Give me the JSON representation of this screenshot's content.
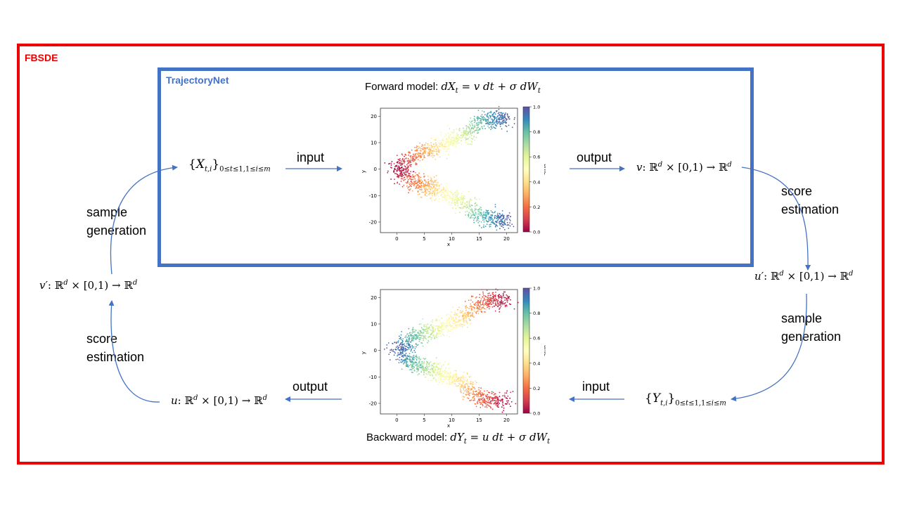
{
  "frames": {
    "outer_label": "FBSDE",
    "inner_label": "TrajectoryNet",
    "outer_color": "#ee0000",
    "inner_color": "#4472c4"
  },
  "forward": {
    "caption_prefix": "Forward model: ",
    "caption_eq": "dX_t = v dt + σ dW_t",
    "input_label": "input",
    "output_label": "output",
    "input_set": "{X_{t,i}}_{0≤t≤1,1≤i≤m}",
    "output_map": "v: ℝ^d × [0,1) → ℝ^d"
  },
  "backward": {
    "caption_prefix": "Backward model: ",
    "caption_eq": "dY_t = u dt + σ dW_t",
    "input_label": "input",
    "output_label": "output",
    "input_set": "{Y_{t,i}}_{0≤t≤1,1≤i≤m}",
    "output_map": "u: ℝ^d × [0,1) → ℝ^d"
  },
  "cycle": {
    "score_estimation_right": "score\nestimation",
    "sample_generation_right": "sample\ngeneration",
    "u_prime_map": "u′: ℝ^d × [0,1) → ℝ^d",
    "score_estimation_left": "score\nestimation",
    "sample_generation_left": "sample\ngeneration",
    "v_prime_map": "v′: ℝ^d × [0,1) → ℝ^d"
  },
  "plot_axes": {
    "xlabel": "x",
    "ylabel": "y",
    "colorbar_label": "time",
    "xticks": [
      0,
      5,
      10,
      15,
      20
    ],
    "yticks": [
      20,
      10,
      0,
      -10,
      -20
    ],
    "cticks": [
      "0.0",
      "0.2",
      "0.4",
      "0.6",
      "0.8",
      "1.0"
    ]
  },
  "chart_data": [
    {
      "type": "scatter",
      "name": "forward",
      "xlim": [
        -3,
        22
      ],
      "ylim": [
        -24,
        23
      ],
      "colormap": "Spectral",
      "time_range": [
        0,
        1
      ],
      "branches": [
        {
          "x": [
            0,
            3,
            6,
            9,
            12,
            15,
            18,
            20
          ],
          "y": [
            0,
            5,
            7,
            10,
            12,
            18,
            19,
            19
          ],
          "time": [
            0.0,
            0.2,
            0.35,
            0.5,
            0.6,
            0.8,
            0.9,
            1.0
          ]
        },
        {
          "x": [
            0,
            3,
            6,
            9,
            12,
            15,
            18,
            20
          ],
          "y": [
            0,
            -5,
            -7,
            -10,
            -12,
            -18,
            -19,
            -19
          ],
          "time": [
            0.0,
            0.2,
            0.35,
            0.5,
            0.6,
            0.8,
            0.9,
            1.0
          ]
        }
      ]
    },
    {
      "type": "scatter",
      "name": "backward",
      "xlim": [
        -3,
        22
      ],
      "ylim": [
        -24,
        23
      ],
      "colormap": "Spectral",
      "time_range": [
        0,
        1
      ],
      "branches": [
        {
          "x": [
            0,
            3,
            6,
            9,
            12,
            15,
            18,
            20
          ],
          "y": [
            0,
            5,
            7,
            10,
            12,
            18,
            19,
            19
          ],
          "time": [
            1.0,
            0.8,
            0.65,
            0.5,
            0.4,
            0.2,
            0.1,
            0.0
          ]
        },
        {
          "x": [
            0,
            3,
            6,
            9,
            12,
            15,
            18,
            20
          ],
          "y": [
            0,
            -5,
            -7,
            -10,
            -12,
            -18,
            -19,
            -19
          ],
          "time": [
            1.0,
            0.8,
            0.65,
            0.5,
            0.4,
            0.2,
            0.1,
            0.0
          ]
        }
      ]
    }
  ]
}
